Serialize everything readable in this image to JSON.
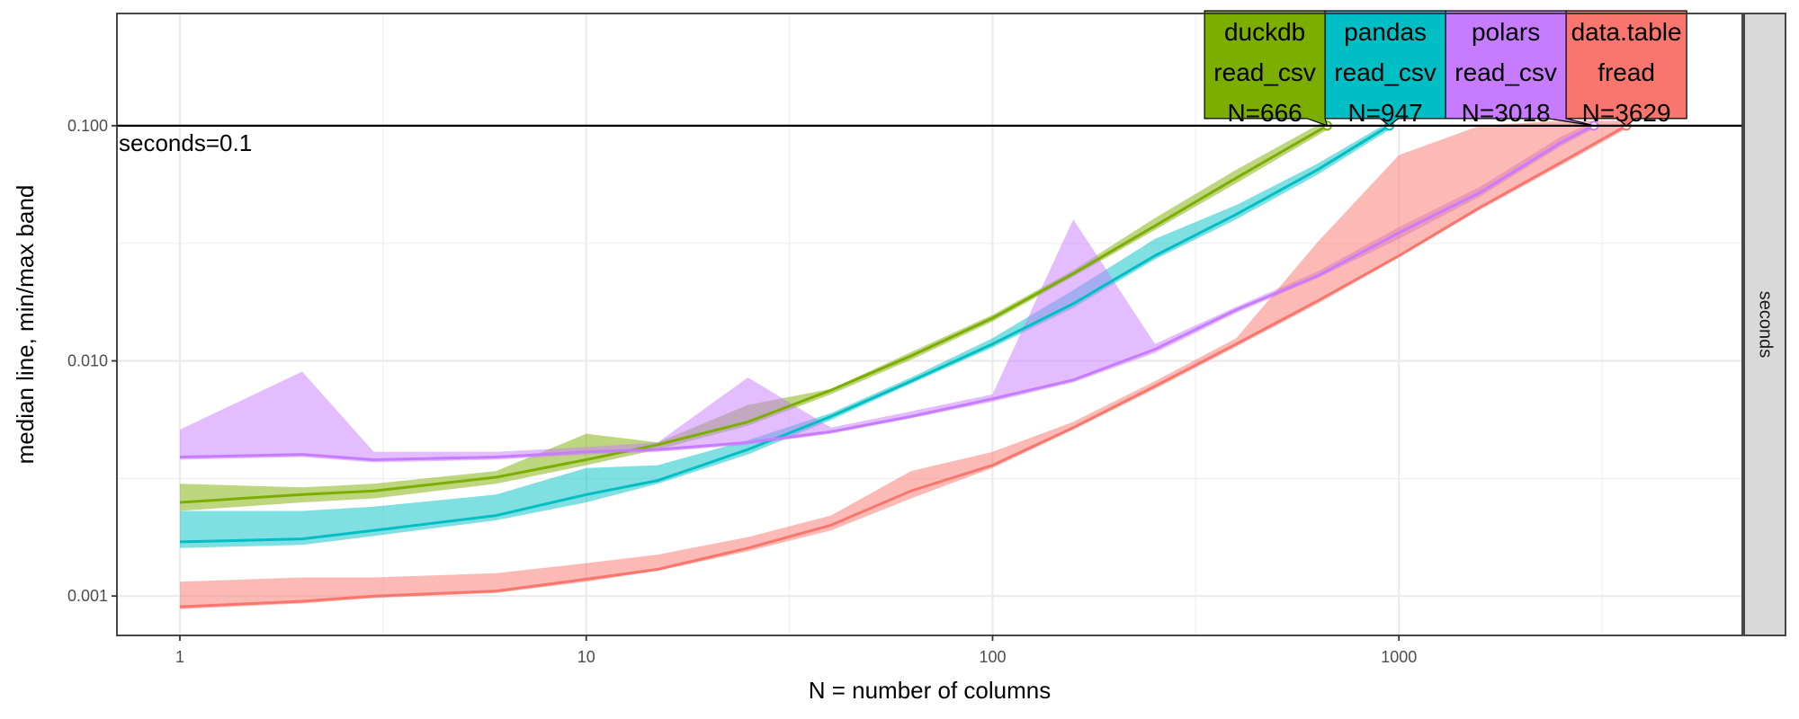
{
  "chart_data": {
    "type": "line",
    "xlabel": "N = number of columns",
    "ylabel": "median line, min/max band",
    "x_scale": "log10",
    "y_scale": "log10",
    "xlim": [
      0.7,
      7000
    ],
    "ylim": [
      0.00068,
      0.3
    ],
    "x_ticks": [
      1,
      10,
      100,
      1000
    ],
    "x_tick_labels": [
      "1",
      "10",
      "100",
      "1000"
    ],
    "y_ticks": [
      0.001,
      0.01,
      0.1
    ],
    "y_tick_labels": [
      "0.001",
      "0.010",
      "0.100"
    ],
    "grid": true,
    "facet_strip": "seconds",
    "reference_line": {
      "y": 0.1,
      "label": "seconds=0.1"
    },
    "series": [
      {
        "name": "duckdb read_csv",
        "label_lines": [
          "duckdb",
          "read_csv",
          "N=666"
        ],
        "color": "#7CAE00",
        "x": [
          1,
          2,
          3,
          6,
          10,
          15,
          25,
          40,
          63,
          100,
          158,
          251,
          398,
          666
        ],
        "median": [
          0.0025,
          0.0027,
          0.0028,
          0.0032,
          0.0038,
          0.0044,
          0.0055,
          0.0075,
          0.0105,
          0.0152,
          0.0235,
          0.0375,
          0.06,
          0.1
        ],
        "min": [
          0.0023,
          0.0025,
          0.0026,
          0.003,
          0.0036,
          0.0042,
          0.0053,
          0.0072,
          0.0101,
          0.0147,
          0.0228,
          0.036,
          0.057,
          0.096
        ],
        "max": [
          0.003,
          0.0029,
          0.003,
          0.0034,
          0.0049,
          0.0045,
          0.0065,
          0.0076,
          0.0109,
          0.0157,
          0.0243,
          0.0405,
          0.065,
          0.106
        ]
      },
      {
        "name": "pandas read_csv",
        "label_lines": [
          "pandas",
          "read_csv",
          "N=947"
        ],
        "color": "#00BFC4",
        "x": [
          1,
          2,
          3,
          6,
          10,
          15,
          25,
          40,
          63,
          100,
          158,
          251,
          398,
          631,
          947
        ],
        "median": [
          0.0017,
          0.00175,
          0.0019,
          0.0022,
          0.0027,
          0.0031,
          0.0042,
          0.0058,
          0.0082,
          0.0118,
          0.0175,
          0.028,
          0.042,
          0.065,
          0.1
        ],
        "min": [
          0.0016,
          0.00165,
          0.0018,
          0.0021,
          0.0025,
          0.003,
          0.004,
          0.0056,
          0.008,
          0.0114,
          0.0168,
          0.027,
          0.04,
          0.062,
          0.096
        ],
        "max": [
          0.0023,
          0.0023,
          0.0024,
          0.0027,
          0.0035,
          0.0036,
          0.0046,
          0.006,
          0.0085,
          0.0125,
          0.02,
          0.033,
          0.046,
          0.069,
          0.104
        ]
      },
      {
        "name": "polars read_csv",
        "label_lines": [
          "polars",
          "read_csv",
          "N=3018"
        ],
        "color": "#C77CFF",
        "x": [
          1,
          2,
          3,
          6,
          10,
          15,
          25,
          40,
          63,
          100,
          158,
          251,
          398,
          631,
          1000,
          1585,
          2512,
          3018
        ],
        "median": [
          0.0039,
          0.004,
          0.0038,
          0.0039,
          0.0041,
          0.0042,
          0.0045,
          0.005,
          0.0058,
          0.0069,
          0.0083,
          0.0112,
          0.0165,
          0.023,
          0.035,
          0.052,
          0.085,
          0.1
        ],
        "min": [
          0.0038,
          0.0039,
          0.0037,
          0.0038,
          0.004,
          0.0041,
          0.0044,
          0.0049,
          0.0057,
          0.0067,
          0.0081,
          0.0108,
          0.016,
          0.0225,
          0.033,
          0.05,
          0.082,
          0.097
        ],
        "max": [
          0.0051,
          0.009,
          0.0041,
          0.0041,
          0.0043,
          0.0045,
          0.0085,
          0.0052,
          0.0061,
          0.0072,
          0.04,
          0.0118,
          0.017,
          0.024,
          0.037,
          0.055,
          0.09,
          0.104
        ]
      },
      {
        "name": "data.table fread",
        "label_lines": [
          "data.table",
          "fread",
          "N=3629"
        ],
        "color": "#F8766D",
        "x": [
          1,
          2,
          3,
          6,
          10,
          15,
          25,
          40,
          63,
          100,
          158,
          251,
          398,
          631,
          1000,
          1585,
          2512,
          3629
        ],
        "median": [
          0.0009,
          0.00095,
          0.001,
          0.00105,
          0.00118,
          0.0013,
          0.0016,
          0.002,
          0.0028,
          0.0036,
          0.0052,
          0.0078,
          0.0118,
          0.018,
          0.028,
          0.045,
          0.07,
          0.1
        ],
        "min": [
          0.00088,
          0.00093,
          0.00098,
          0.00103,
          0.00115,
          0.00128,
          0.00155,
          0.0019,
          0.0026,
          0.0035,
          0.0051,
          0.0076,
          0.0115,
          0.0175,
          0.0275,
          0.044,
          0.068,
          0.097
        ],
        "max": [
          0.00115,
          0.0012,
          0.0012,
          0.00125,
          0.00138,
          0.0015,
          0.00178,
          0.0022,
          0.0034,
          0.0041,
          0.0055,
          0.0082,
          0.0125,
          0.032,
          0.075,
          0.1,
          0.105,
          0.105
        ]
      }
    ]
  }
}
